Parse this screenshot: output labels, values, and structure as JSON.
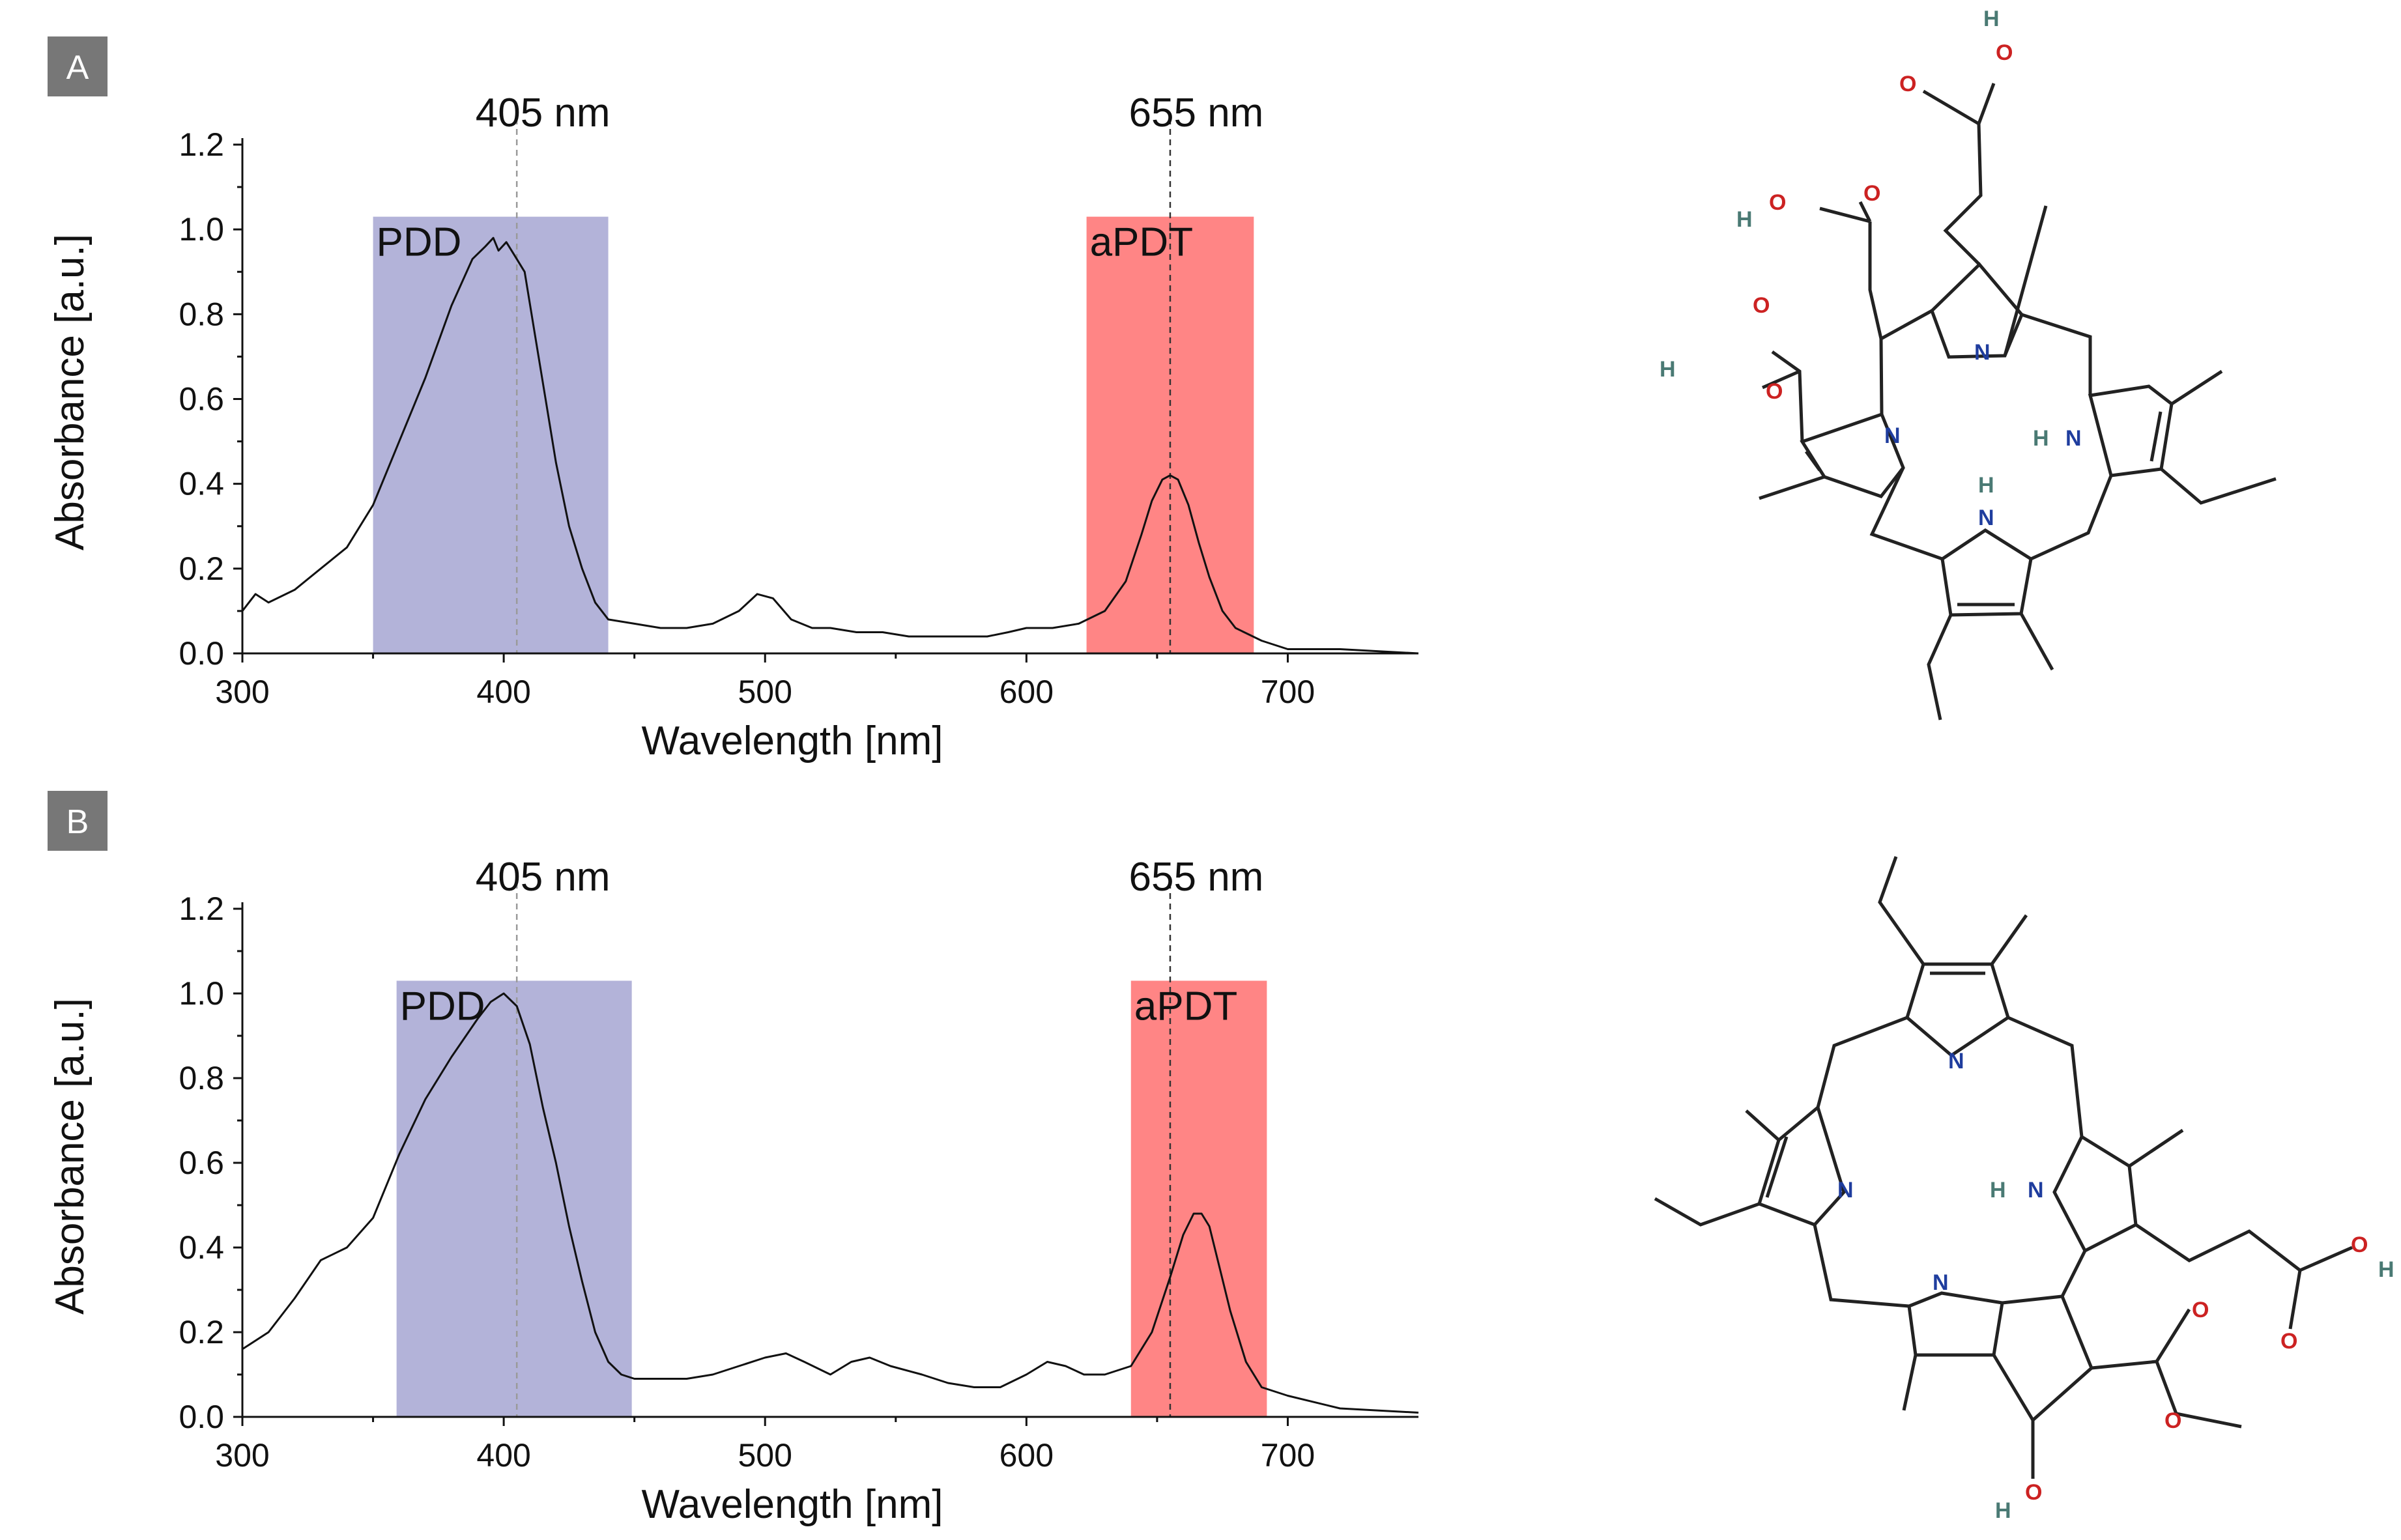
{
  "colors": {
    "pdd_band": "#b3b3d9",
    "apdt_band": "#ff8585",
    "curve": "#111111",
    "panel_badge": "#777777",
    "oxygen": "#cc2222",
    "nitrogen": "#1f3d9e",
    "hydrogen": "#4a7a74",
    "bond": "#222222"
  },
  "chart_data": [
    {
      "panel": "A",
      "type": "line",
      "xlabel": "Wavelength [nm]",
      "ylabel": "Absorbance [a.u.]",
      "xlim": [
        300,
        750
      ],
      "ylim": [
        0,
        1.2
      ],
      "x_ticks": [
        "300",
        "400",
        "500",
        "600",
        "700"
      ],
      "y_ticks": [
        "0.0",
        "0.2",
        "0.4",
        "0.6",
        "0.8",
        "1.0",
        "1.2"
      ],
      "lines": [
        {
          "x": 405,
          "label": "405 nm",
          "color": "#9a9a9a"
        },
        {
          "x": 655,
          "label": "655 nm",
          "color": "#333333"
        }
      ],
      "bands": [
        {
          "label": "PDD",
          "from": 350,
          "to": 440,
          "top": 1.03
        },
        {
          "label": "aPDT",
          "from": 623,
          "to": 687,
          "top": 1.03
        }
      ],
      "series": [
        {
          "name": "Panel A absorbance",
          "x": [
            300,
            305,
            310,
            320,
            330,
            340,
            350,
            360,
            370,
            380,
            388,
            393,
            396,
            398,
            401,
            404,
            408,
            412,
            416,
            420,
            425,
            430,
            435,
            440,
            450,
            460,
            470,
            480,
            490,
            497,
            503,
            510,
            518,
            525,
            535,
            545,
            555,
            565,
            575,
            585,
            593,
            600,
            610,
            620,
            630,
            638,
            644,
            648,
            652,
            655,
            658,
            662,
            666,
            670,
            675,
            680,
            690,
            700,
            720,
            750
          ],
          "y": [
            0.1,
            0.14,
            0.12,
            0.15,
            0.2,
            0.25,
            0.35,
            0.5,
            0.65,
            0.82,
            0.93,
            0.96,
            0.98,
            0.95,
            0.97,
            0.94,
            0.9,
            0.75,
            0.6,
            0.45,
            0.3,
            0.2,
            0.12,
            0.08,
            0.07,
            0.06,
            0.06,
            0.07,
            0.1,
            0.14,
            0.13,
            0.08,
            0.06,
            0.06,
            0.05,
            0.05,
            0.04,
            0.04,
            0.04,
            0.04,
            0.05,
            0.06,
            0.06,
            0.07,
            0.1,
            0.17,
            0.28,
            0.36,
            0.41,
            0.42,
            0.41,
            0.35,
            0.26,
            0.18,
            0.1,
            0.06,
            0.03,
            0.01,
            0.01,
            0.0
          ]
        }
      ]
    },
    {
      "panel": "B",
      "type": "line",
      "xlabel": "Wavelength [nm]",
      "ylabel": "Absorbance [a.u.]",
      "xlim": [
        300,
        750
      ],
      "ylim": [
        0,
        1.2
      ],
      "x_ticks": [
        "300",
        "400",
        "500",
        "600",
        "700"
      ],
      "y_ticks": [
        "0.0",
        "0.2",
        "0.4",
        "0.6",
        "0.8",
        "1.0",
        "1.2"
      ],
      "lines": [
        {
          "x": 405,
          "label": "405 nm",
          "color": "#9a9a9a"
        },
        {
          "x": 655,
          "label": "655 nm",
          "color": "#333333"
        }
      ],
      "bands": [
        {
          "label": "PDD",
          "from": 359,
          "to": 449,
          "top": 1.03
        },
        {
          "label": "aPDT",
          "from": 640,
          "to": 692,
          "top": 1.03
        }
      ],
      "series": [
        {
          "name": "Panel B absorbance",
          "x": [
            300,
            310,
            320,
            330,
            340,
            350,
            360,
            370,
            380,
            390,
            395,
            400,
            405,
            410,
            415,
            420,
            425,
            430,
            435,
            440,
            445,
            450,
            460,
            470,
            480,
            490,
            500,
            508,
            515,
            525,
            533,
            540,
            548,
            560,
            570,
            580,
            590,
            600,
            608,
            615,
            622,
            630,
            640,
            648,
            655,
            660,
            664,
            667,
            670,
            674,
            678,
            684,
            690,
            700,
            720,
            750
          ],
          "y": [
            0.16,
            0.2,
            0.28,
            0.37,
            0.4,
            0.47,
            0.62,
            0.75,
            0.85,
            0.94,
            0.98,
            1.0,
            0.97,
            0.88,
            0.73,
            0.6,
            0.45,
            0.32,
            0.2,
            0.13,
            0.1,
            0.09,
            0.09,
            0.09,
            0.1,
            0.12,
            0.14,
            0.15,
            0.13,
            0.1,
            0.13,
            0.14,
            0.12,
            0.1,
            0.08,
            0.07,
            0.07,
            0.1,
            0.13,
            0.12,
            0.1,
            0.1,
            0.12,
            0.2,
            0.33,
            0.43,
            0.48,
            0.48,
            0.45,
            0.35,
            0.25,
            0.13,
            0.07,
            0.05,
            0.02,
            0.01
          ]
        }
      ]
    }
  ],
  "panel_labels": [
    "A",
    "B"
  ],
  "structure_A": {
    "atoms": {
      "n_top": "N",
      "n_left": "N",
      "nh_right": "H",
      "nh_right_n": "N",
      "nh_bottom_h": "H",
      "nh_bottom_n": "N",
      "o1": "O",
      "o2": "O",
      "h2": "H",
      "o3": "O",
      "h3": "H",
      "o4": "O",
      "o5": "O",
      "o6": "O",
      "h6": "H"
    }
  },
  "structure_B": {
    "atoms": {
      "n_top": "N",
      "n_left": "N",
      "nh_right_h": "H",
      "nh_right_n": "N",
      "n_bottom": "N",
      "o1": "O",
      "o2": "O",
      "h2": "H",
      "o3": "O",
      "o4": "O",
      "o5": "O",
      "h5": "H"
    }
  }
}
